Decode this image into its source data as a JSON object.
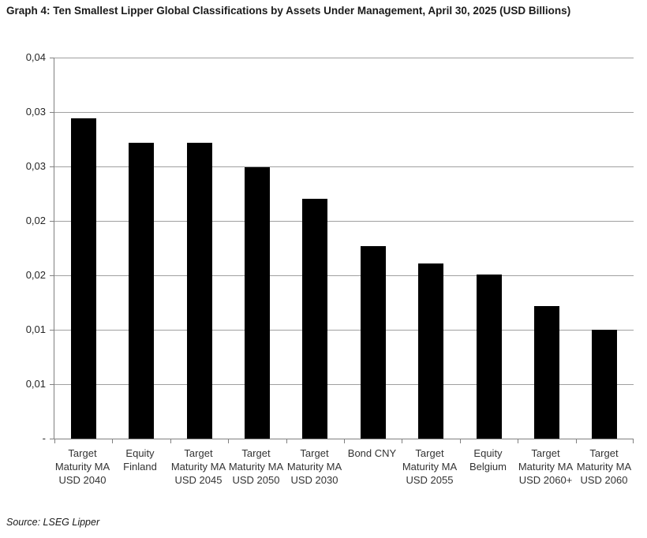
{
  "chart_data": {
    "type": "bar",
    "title": "Graph 4: Ten Smallest Lipper Global Classifications by Assets Under Management, April 30, 2025 (USD Billions)",
    "categories": [
      "Target Maturity MA USD 2040",
      "Equity Finland",
      "Target Maturity MA USD 2045",
      "Target Maturity MA USD 2050",
      "Target Maturity MA USD 2030",
      "Bond CNY",
      "Target Maturity MA USD 2055",
      "Equity Belgium",
      "Target Maturity MA USD 2060+",
      "Target Maturity MA USD 2060"
    ],
    "values": [
      0.0294,
      0.0272,
      0.0272,
      0.0249,
      0.022,
      0.0177,
      0.0161,
      0.0151,
      0.0122,
      0.01
    ],
    "xlabel": "",
    "ylabel": "",
    "ylim": [
      0,
      0.035
    ],
    "ytick_interval": 0.005,
    "ytick_labels": [
      "0,04",
      "0,03",
      "0,03",
      "0,02",
      "0,02",
      "0,01",
      "0,01",
      "-"
    ],
    "grid": true,
    "legend": "none",
    "bar_color": "#000000",
    "gridline_color": "#a0a0a0",
    "axis_color": "#808080",
    "source": "Source: LSEG Lipper"
  }
}
